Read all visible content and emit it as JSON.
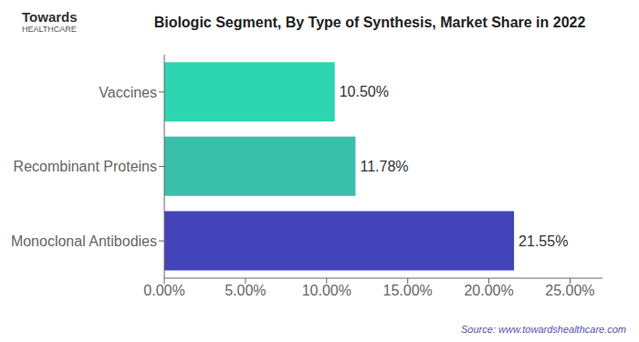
{
  "chart_data": {
    "type": "bar",
    "orientation": "horizontal",
    "title": "Biologic Segment, By Type of Synthesis, Market Share in 2022",
    "categories": [
      "Monoclonal Antibodies",
      "Recombinant Proteins",
      "Vaccines"
    ],
    "values": [
      21.55,
      11.78,
      10.5
    ],
    "value_labels": [
      "21.55%",
      "11.78%",
      "10.50%"
    ],
    "data_labels": true,
    "colors": [
      "#4444bb",
      "#3abfab",
      "#2dd4b0"
    ],
    "xlim": [
      0,
      27
    ],
    "xticks": [
      {
        "value": 0,
        "label": "0.00%"
      },
      {
        "value": 5,
        "label": "5.00%"
      },
      {
        "value": 10,
        "label": "10.00%"
      },
      {
        "value": 15,
        "label": "15.00%"
      },
      {
        "value": 20,
        "label": "20.00%"
      },
      {
        "value": 25,
        "label": "25.00%"
      }
    ],
    "grid": false,
    "annotations": [
      "Towards",
      "HEALTHCARE",
      "Source: www.towardshealthcare.com"
    ]
  }
}
